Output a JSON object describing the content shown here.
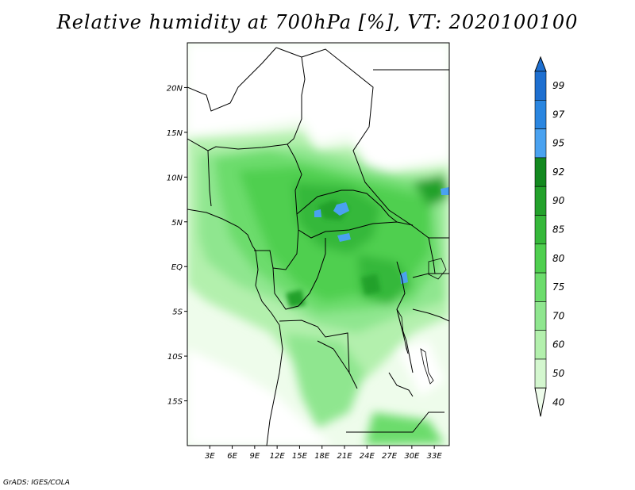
{
  "title": "Relative humidity at 700hPa [%], VT: 2020100100",
  "credit": "GrADS: IGES/COLA",
  "map": {
    "lat_labels": [
      {
        "lat": 20,
        "label": "20N"
      },
      {
        "lat": 15,
        "label": "15N"
      },
      {
        "lat": 10,
        "label": "10N"
      },
      {
        "lat": 5,
        "label": "5N"
      },
      {
        "lat": 0,
        "label": "EQ"
      },
      {
        "lat": -5,
        "label": "5S"
      },
      {
        "lat": -10,
        "label": "10S"
      },
      {
        "lat": -15,
        "label": "15S"
      }
    ],
    "lon_labels": [
      {
        "lon": 3,
        "label": "3E"
      },
      {
        "lon": 6,
        "label": "6E"
      },
      {
        "lon": 9,
        "label": "9E"
      },
      {
        "lon": 12,
        "label": "12E"
      },
      {
        "lon": 15,
        "label": "15E"
      },
      {
        "lon": 18,
        "label": "18E"
      },
      {
        "lon": 21,
        "label": "21E"
      },
      {
        "lon": 24,
        "label": "24E"
      },
      {
        "lon": 27,
        "label": "27E"
      },
      {
        "lon": 30,
        "label": "30E"
      },
      {
        "lon": 33,
        "label": "33E"
      }
    ],
    "lon_range": [
      0,
      35
    ],
    "lat_range": [
      -20,
      25
    ]
  },
  "colorbar": {
    "levels": [
      "99",
      "97",
      "95",
      "92",
      "90",
      "85",
      "80",
      "75",
      "70",
      "60",
      "50",
      "40"
    ],
    "colors": [
      "#1e6fd0",
      "#2a86e0",
      "#4aa2f0",
      "#13891f",
      "#23a12b",
      "#36b83a",
      "#4fcf4f",
      "#6cdc6c",
      "#8fe68f",
      "#b3f0ad",
      "#d4f7cf",
      "#eefceb"
    ]
  },
  "colors": {
    "rh_40": "#eefceb",
    "rh_50": "#d4f7cf",
    "rh_60": "#b3f0ad",
    "rh_70": "#8fe68f",
    "rh_75": "#6cdc6c",
    "rh_80": "#4fcf4f",
    "rh_85": "#36b83a",
    "rh_90": "#23a12b",
    "rh_95": "#4aa2f0"
  }
}
